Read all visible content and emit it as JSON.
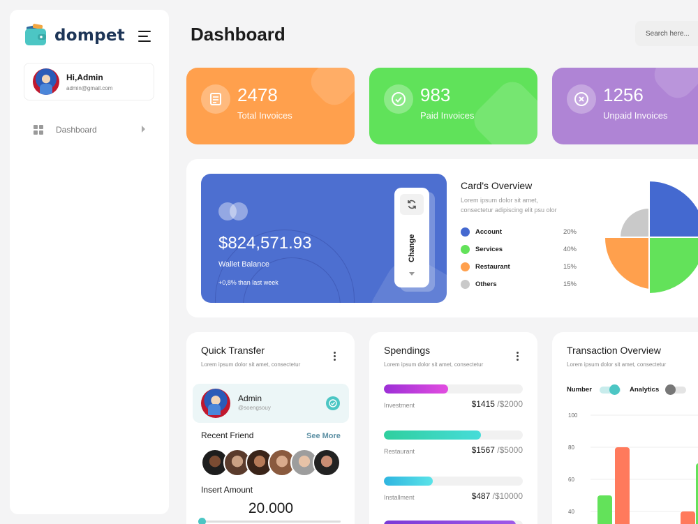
{
  "app": {
    "brand": "dompet",
    "accent": "#4cc6c4"
  },
  "profile": {
    "greeting": "Hi,",
    "name": "Admin",
    "email": "admin@gmail.com"
  },
  "nav": {
    "items": [
      {
        "label": "Dashboard",
        "icon": "grid-icon"
      }
    ]
  },
  "header": {
    "title": "Dashboard",
    "search_placeholder": "Search here..."
  },
  "stats": [
    {
      "value": "2478",
      "label": "Total Invoices",
      "icon": "invoice-icon",
      "color": "#ffa04d"
    },
    {
      "value": "983",
      "label": "Paid Invoices",
      "icon": "check-circle-icon",
      "color": "#60e25a"
    },
    {
      "value": "1256",
      "label": "Unpaid Invoices",
      "icon": "cancel-circle-icon",
      "color": "#af84d5"
    }
  ],
  "wallet": {
    "balance": "$824,571.93",
    "label": "Wallet Balance",
    "change": "+0,8% than last week",
    "button": "Change",
    "color": "#4d6fd0"
  },
  "overview": {
    "title": "Card's Overview",
    "description": "Lorem ipsum dolor sit amet, consectetur adipiscing elit psu olor",
    "legend": [
      {
        "name": "Account",
        "value": "20%",
        "color": "#4469d0"
      },
      {
        "name": "Services",
        "value": "40%",
        "color": "#63e25a"
      },
      {
        "name": "Restaurant",
        "value": "15%",
        "color": "#ffa04d"
      },
      {
        "name": "Others",
        "value": "15%",
        "color": "#c9c9c9"
      }
    ]
  },
  "quick_transfer": {
    "title": "Quick Transfer",
    "subtitle": "Lorem ipsum dolor sit amet, consectetur",
    "user": {
      "name": "Admin",
      "handle": "@soengsouy"
    },
    "recent_title": "Recent Friend",
    "see_more": "See More",
    "amount_title": "Insert Amount",
    "amount": "20.000",
    "slider_level": 0
  },
  "spendings": {
    "title": "Spendings",
    "subtitle": "Lorem ipsum dolor sit amet, consectetur",
    "items": [
      {
        "name": "Investment",
        "amount": "$1415",
        "total": "/$2000",
        "fraction": 0.46
      },
      {
        "name": "Restaurant",
        "amount": "$1567",
        "total": "/$5000",
        "fraction": 0.7
      },
      {
        "name": "Installment",
        "amount": "$487",
        "total": "/$10000",
        "fraction": 0.35
      }
    ]
  },
  "transaction": {
    "title": "Transaction Overview",
    "subtitle": "Lorem ipsum dolor sit amet, consectetur",
    "toggles": [
      {
        "label": "Number",
        "on": true
      },
      {
        "label": "Analytics",
        "on": false
      }
    ]
  },
  "chart_data": {
    "type": "bar",
    "ylim": [
      40,
      100
    ],
    "yticks": [
      "100",
      "80",
      "60",
      "40"
    ],
    "categories": [
      "",
      "",
      "",
      ""
    ],
    "series": [
      {
        "values": [
          50,
          null,
          null,
          70
        ],
        "color": "#63e25a"
      },
      {
        "values": [
          80,
          null,
          40,
          null
        ],
        "color": "#ff7a5c"
      }
    ],
    "grid": true
  }
}
